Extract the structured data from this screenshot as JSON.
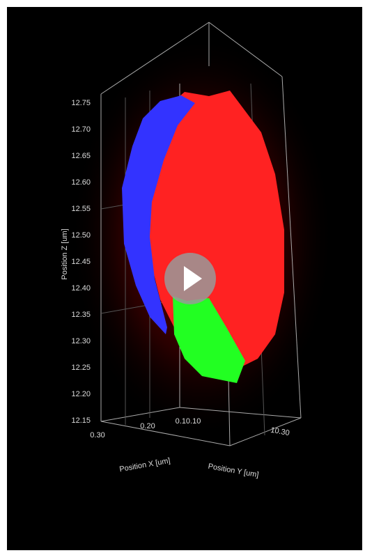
{
  "axes": {
    "z": {
      "label": "Position Z [um]",
      "ticks": [
        "12.75",
        "12.70",
        "12.65",
        "12.60",
        "12.55",
        "12.50",
        "12.45",
        "12.40",
        "12.35",
        "12.30",
        "12.25",
        "12.20",
        "12.15"
      ]
    },
    "x": {
      "label": "Position X [um]",
      "ticks": [
        "0.30",
        "0.20",
        "0.10.10"
      ]
    },
    "y": {
      "label": "Position Y [um]",
      "ticks": [
        "10.30"
      ]
    }
  }
}
